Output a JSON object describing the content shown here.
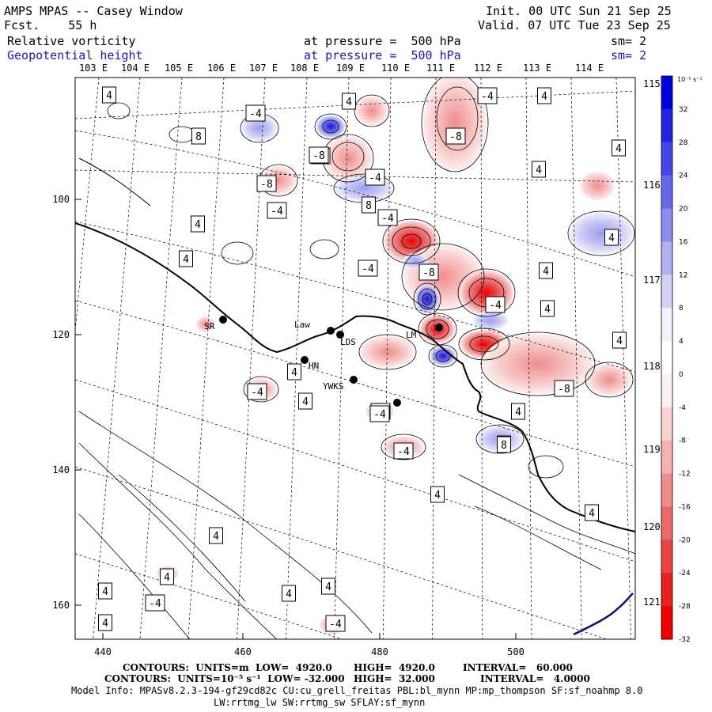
{
  "header": {
    "title": "AMPS MPAS -- Casey Window",
    "forecast": "Fcst.    55 h",
    "init": "Init. 00 UTC Sun 21 Sep 25",
    "valid": "Valid. 07 UTC Tue 23 Sep 25",
    "field1_name": "Relative vorticity",
    "field1_level": "at pressure =  500 hPa",
    "field1_sm": "sm= 2",
    "field2_name": "Geopotential height",
    "field2_level": "at pressure =  500 hPa",
    "field2_sm": "sm= 2"
  },
  "top_lon_labels": [
    "103 E",
    "104 E",
    "105 E",
    "106 E",
    "107 E",
    "108 E",
    "109 E",
    "110 E",
    "111 E",
    "112 E",
    "113 E",
    "114 E"
  ],
  "right_lon_labels": [
    "115 E",
    "116 E",
    "117 E",
    "118 E",
    "119 E",
    "120 E",
    "121 E"
  ],
  "x_axis_ticks": [
    "440",
    "460",
    "480",
    "500"
  ],
  "y_axis_ticks": [
    "100",
    "120",
    "140",
    "160"
  ],
  "colorbar": {
    "unit": "10⁻⁵ s⁻¹",
    "levels": [
      "32",
      "28",
      "24",
      "20",
      "16",
      "12",
      "8",
      "4",
      "0",
      "-4",
      "-8",
      "-12",
      "-16",
      "-20",
      "-24",
      "-28",
      "-32"
    ],
    "colors": [
      "#0000dd",
      "#2323e0",
      "#4646e6",
      "#6868ea",
      "#8c8cee",
      "#b0b0f3",
      "#d2d2f8",
      "#f2f2fd",
      "#ffffff",
      "#fdf0f0",
      "#f9d2d2",
      "#f5b0b0",
      "#f08c8c",
      "#ec6868",
      "#e84444",
      "#e82020",
      "#ee0000"
    ]
  },
  "contour_labels": [
    "4",
    "-4",
    "4",
    "-4",
    "4",
    "8",
    "-8",
    "-8",
    "-8",
    "-4",
    "-8",
    "-4",
    "8",
    "4",
    "-4",
    "4",
    "4",
    "-8",
    "-4",
    "4",
    "4",
    "8",
    "4",
    "4",
    "-4",
    "-4",
    "-4",
    "-8",
    "4",
    "-4",
    "4",
    "-4",
    "8",
    "4",
    "4",
    "4",
    "4",
    "-4",
    "4",
    "4",
    "4",
    "4",
    "-4",
    "4",
    "4",
    "4"
  ],
  "stations": [
    "SR",
    "Law",
    "LDS",
    "HN",
    "YWKS",
    "LM"
  ],
  "footer": {
    "line1_a": "CONTOURS:  UNITS=m  LOW=  4920.0",
    "line1_b": "HIGH=  4920.0",
    "line1_c": "INTERVAL=   60.000",
    "line2_a": "CONTOURS:  UNITS=10⁻⁵ s⁻¹  LOW= -32.000",
    "line2_b": "HIGH=  32.000",
    "line2_c": "INTERVAL=   4.0000",
    "model_info": "Model Info: MPASv8.2.3-194-gf29cd82c CU:cu_grell_freitas PBL:bl_mynn MP:mp_thompson SF:sf_noahmp 8.0",
    "model_info2": "LW:rrtmg_lw SW:rrtmg_sw SFLAY:sf_mynn"
  }
}
